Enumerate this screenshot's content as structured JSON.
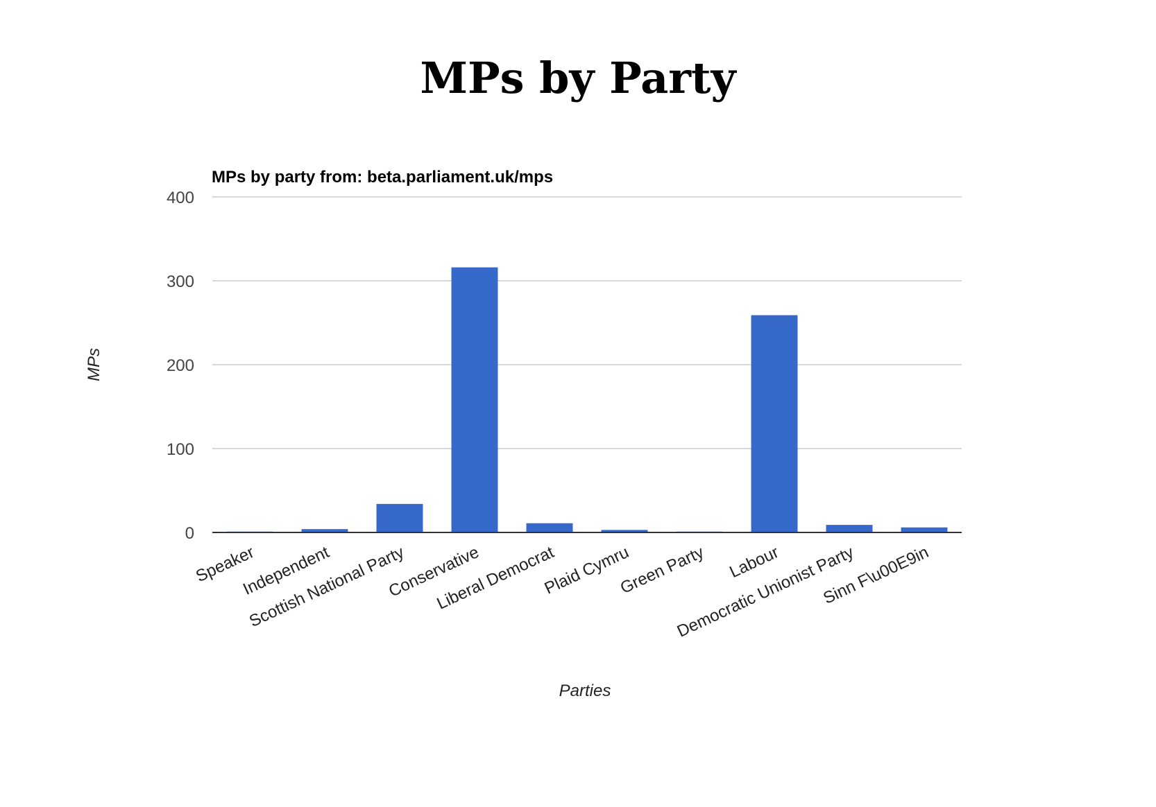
{
  "page": {
    "title": "MPs by Party"
  },
  "colors": {
    "bar": "#3669c9",
    "grid": "#cccccc",
    "baseline": "#333333",
    "tick_text": "#444444",
    "title_text": "#000000"
  },
  "chart_data": {
    "type": "bar",
    "title": "MPs by party from: beta.parliament.uk/mps",
    "xlabel": "Parties",
    "ylabel": "MPs",
    "ylim": [
      0,
      400
    ],
    "yticks": [
      0,
      100,
      200,
      300,
      400
    ],
    "grid": true,
    "legend": "none",
    "categories": [
      "Speaker",
      "Independent",
      "Scottish National Party",
      "Conservative",
      "Liberal Democrat",
      "Plaid Cymru",
      "Green Party",
      "Labour",
      "Democratic Unionist Party",
      "Sinn F\\u00E9in"
    ],
    "values": [
      1,
      4,
      34,
      316,
      11,
      3,
      1,
      259,
      9,
      6
    ]
  }
}
